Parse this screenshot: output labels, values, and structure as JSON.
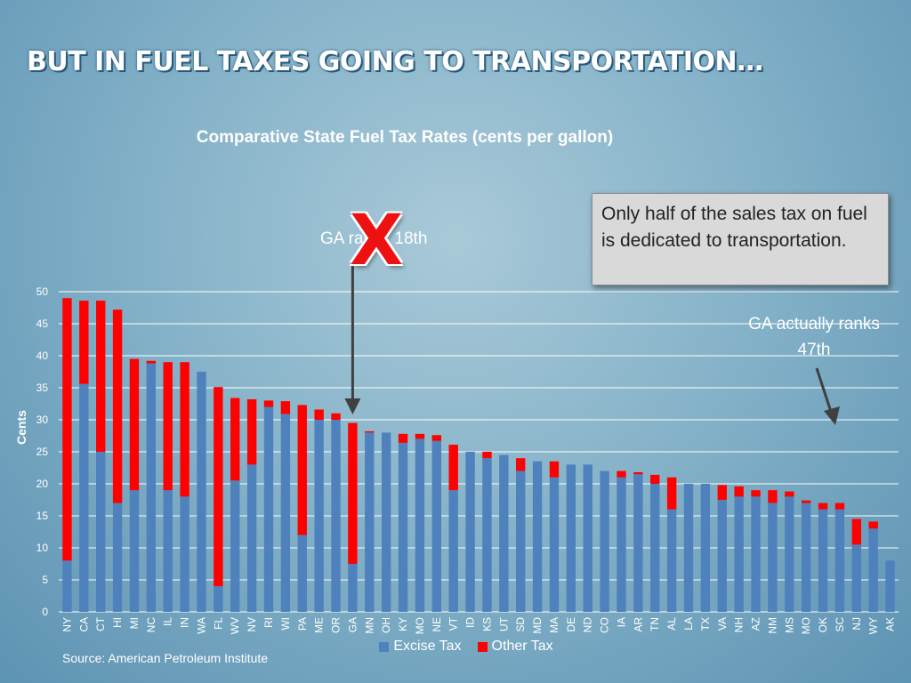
{
  "slide": {
    "title": "BUT IN FUEL TAXES GOING TO TRANSPORTATION…",
    "source": "Source: American Petroleum Institute"
  },
  "annotations": {
    "ga_rank_label": "GA ranks 18th",
    "x_mark": "X",
    "note": "Only half of the sales tax on fuel is dedicated to transportation.",
    "ga_actual": "GA actually ranks 47th"
  },
  "colors": {
    "excise": "#4f81bd",
    "other": "#ff0000",
    "grid": "#ffffff",
    "arrow": "#404040"
  },
  "chart_data": {
    "type": "bar",
    "stacked": true,
    "title": "Comparative State Fuel Tax Rates (cents per gallon)",
    "xlabel": "",
    "ylabel": "Cents",
    "ylim": [
      0,
      50
    ],
    "yticks": [
      0,
      5,
      10,
      15,
      20,
      25,
      30,
      35,
      40,
      45,
      50
    ],
    "grid": true,
    "legend_position": "bottom",
    "categories": [
      "NY",
      "CA",
      "CT",
      "HI",
      "MI",
      "NC",
      "IL",
      "IN",
      "WA",
      "FL",
      "WV",
      "NV",
      "RI",
      "WI",
      "PA",
      "ME",
      "OR",
      "GA",
      "MN",
      "OH",
      "KY",
      "MO",
      "NE",
      "VT",
      "ID",
      "KS",
      "UT",
      "SD",
      "MD",
      "MA",
      "DE",
      "ND",
      "CO",
      "IA",
      "AR",
      "TN",
      "AL",
      "LA",
      "TX",
      "VA",
      "NH",
      "AZ",
      "NM",
      "MS",
      "MO",
      "OK",
      "SC",
      "NJ",
      "WY",
      "AK"
    ],
    "series": [
      {
        "name": "Excise Tax",
        "values": [
          8,
          35.6,
          25,
          17,
          19,
          38.8,
          19,
          18,
          37.5,
          4,
          20.5,
          23,
          32,
          30.9,
          12,
          30,
          30,
          7.5,
          28,
          28,
          26.4,
          27,
          26.7,
          19,
          25,
          24,
          24.5,
          22,
          23.5,
          21,
          23,
          23,
          22,
          21,
          21.5,
          20,
          16,
          20,
          20,
          17.5,
          18,
          18,
          17,
          18,
          17,
          16,
          16,
          10.5,
          13,
          8
        ]
      },
      {
        "name": "Other Tax",
        "values": [
          41,
          13,
          23.6,
          30.2,
          20.5,
          0.4,
          20,
          21,
          0,
          31.1,
          12.9,
          10.2,
          1,
          2,
          20.3,
          1.6,
          1,
          22,
          0.2,
          0,
          1.4,
          0.8,
          0.9,
          7.1,
          0,
          1,
          0,
          2,
          0,
          2.5,
          0,
          0,
          0,
          1,
          0.3,
          1.4,
          5,
          0,
          0,
          2.3,
          1.6,
          1,
          2,
          0.8,
          0.4,
          1,
          1,
          4,
          1.1,
          0
        ]
      }
    ]
  }
}
